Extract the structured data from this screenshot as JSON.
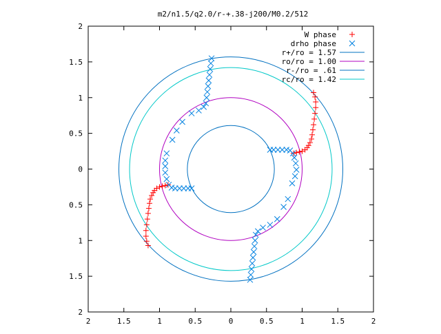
{
  "chart_data": {
    "type": "scatter",
    "title": "m2/n1.5/q2.0/r-+.38-j200/M0.2/512",
    "xlabel": "",
    "ylabel": "",
    "xlim": [
      -2,
      2
    ],
    "ylim": [
      -2,
      2
    ],
    "x_ticks": [
      -2,
      -1.5,
      -1,
      -0.5,
      0,
      0.5,
      1,
      1.5,
      2
    ],
    "y_ticks": [
      -2,
      -1.5,
      -1,
      -0.5,
      0,
      0.5,
      1,
      1.5,
      2
    ],
    "x_tick_labels": [
      "2",
      "1.5",
      "1",
      "0.5",
      "0",
      "0.5",
      "1",
      "1.5",
      "2"
    ],
    "y_tick_labels": [
      "2",
      "1.5",
      "1",
      "0.5",
      "0",
      "0.5",
      "1",
      "1.5",
      "2"
    ],
    "grid": false,
    "legend_position": "top-right",
    "colors": {
      "w_phase": "#ff0000",
      "drho_phase": "#0080e0",
      "r_plus": "#0070c0",
      "ro": "#b000c0",
      "r_minus": "#0070c0",
      "rc": "#00c8c8"
    },
    "legend": [
      {
        "key": "w_phase",
        "label": "W phase",
        "marker": "plus"
      },
      {
        "key": "drho_phase",
        "label": "drho phase",
        "marker": "cross"
      },
      {
        "key": "r_plus",
        "label": "r+/ro = 1.57",
        "marker": "line"
      },
      {
        "key": "ro",
        "label": "ro/ro = 1.00",
        "marker": "line"
      },
      {
        "key": "r_minus",
        "label": "r-/ro = .61",
        "marker": "line"
      },
      {
        "key": "rc",
        "label": "rc/ro = 1.42",
        "marker": "line"
      }
    ],
    "circles": [
      {
        "key": "r_plus",
        "r": 1.57
      },
      {
        "key": "ro",
        "r": 1.0
      },
      {
        "key": "r_minus",
        "r": 0.61
      },
      {
        "key": "rc",
        "r": 1.42
      }
    ],
    "series": [
      {
        "name": "W phase",
        "color_key": "w_phase",
        "marker": "plus",
        "points": [
          [
            0.88,
            0.22
          ],
          [
            0.92,
            0.23
          ],
          [
            0.96,
            0.24
          ],
          [
            1.0,
            0.25
          ],
          [
            1.04,
            0.27
          ],
          [
            1.07,
            0.3
          ],
          [
            1.09,
            0.33
          ],
          [
            1.11,
            0.37
          ],
          [
            1.13,
            0.42
          ],
          [
            1.14,
            0.48
          ],
          [
            1.15,
            0.55
          ],
          [
            1.16,
            0.62
          ],
          [
            1.17,
            0.7
          ],
          [
            1.18,
            0.78
          ],
          [
            1.19,
            0.86
          ],
          [
            1.19,
            0.94
          ],
          [
            1.18,
            1.01
          ],
          [
            1.16,
            1.07
          ],
          [
            -0.88,
            -0.22
          ],
          [
            -0.92,
            -0.23
          ],
          [
            -0.96,
            -0.24
          ],
          [
            -1.0,
            -0.25
          ],
          [
            -1.04,
            -0.27
          ],
          [
            -1.07,
            -0.3
          ],
          [
            -1.09,
            -0.33
          ],
          [
            -1.11,
            -0.37
          ],
          [
            -1.13,
            -0.42
          ],
          [
            -1.14,
            -0.48
          ],
          [
            -1.15,
            -0.55
          ],
          [
            -1.16,
            -0.62
          ],
          [
            -1.17,
            -0.7
          ],
          [
            -1.18,
            -0.78
          ],
          [
            -1.19,
            -0.86
          ],
          [
            -1.19,
            -0.94
          ],
          [
            -1.18,
            -1.01
          ],
          [
            -1.16,
            -1.07
          ]
        ]
      },
      {
        "name": "drho phase",
        "color_key": "drho_phase",
        "marker": "cross",
        "points": [
          [
            0.55,
            0.27
          ],
          [
            0.6,
            0.27
          ],
          [
            0.66,
            0.27
          ],
          [
            0.72,
            0.27
          ],
          [
            0.78,
            0.27
          ],
          [
            0.83,
            0.26
          ],
          [
            0.87,
            0.22
          ],
          [
            0.89,
            0.16
          ],
          [
            0.91,
            0.08
          ],
          [
            0.92,
            -0.01
          ],
          [
            0.9,
            -0.1
          ],
          [
            0.86,
            -0.2
          ],
          [
            0.8,
            -0.42
          ],
          [
            0.74,
            -0.53
          ],
          [
            0.65,
            -0.7
          ],
          [
            0.55,
            -0.78
          ],
          [
            0.45,
            -0.82
          ],
          [
            0.38,
            -0.87
          ],
          [
            0.35,
            -0.92
          ],
          [
            0.34,
            -1.0
          ],
          [
            0.33,
            -1.08
          ],
          [
            0.32,
            -1.16
          ],
          [
            0.31,
            -1.24
          ],
          [
            0.3,
            -1.32
          ],
          [
            0.29,
            -1.4
          ],
          [
            0.28,
            -1.48
          ],
          [
            0.27,
            -1.55
          ],
          [
            -0.55,
            -0.27
          ],
          [
            -0.6,
            -0.27
          ],
          [
            -0.66,
            -0.27
          ],
          [
            -0.72,
            -0.27
          ],
          [
            -0.78,
            -0.27
          ],
          [
            -0.83,
            -0.26
          ],
          [
            -0.87,
            -0.22
          ],
          [
            -0.9,
            -0.14
          ],
          [
            -0.92,
            -0.05
          ],
          [
            -0.92,
            0.04
          ],
          [
            -0.92,
            0.12
          ],
          [
            -0.9,
            0.22
          ],
          [
            -0.82,
            0.41
          ],
          [
            -0.76,
            0.54
          ],
          [
            -0.68,
            0.66
          ],
          [
            -0.55,
            0.78
          ],
          [
            -0.45,
            0.82
          ],
          [
            -0.38,
            0.87
          ],
          [
            -0.35,
            0.92
          ],
          [
            -0.34,
            1.0
          ],
          [
            -0.33,
            1.08
          ],
          [
            -0.32,
            1.16
          ],
          [
            -0.31,
            1.24
          ],
          [
            -0.3,
            1.32
          ],
          [
            -0.29,
            1.4
          ],
          [
            -0.28,
            1.48
          ],
          [
            -0.27,
            1.55
          ]
        ]
      }
    ]
  }
}
